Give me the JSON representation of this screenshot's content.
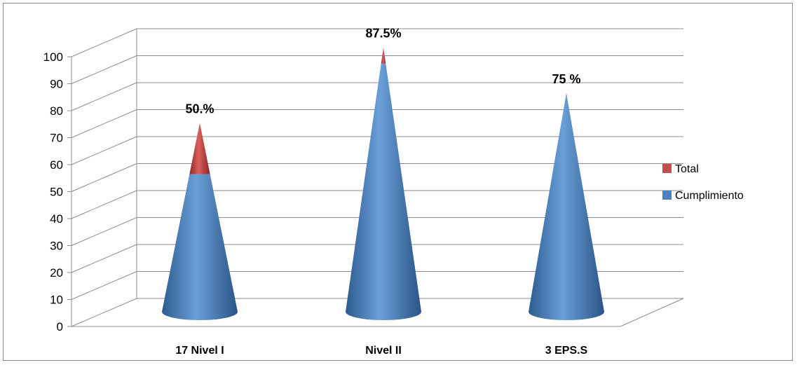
{
  "chart_data": {
    "type": "bar",
    "style": "3d-cone-stacked",
    "categories": [
      "17  Nivel  I",
      "Nivel II",
      "3  EPS.S"
    ],
    "series": [
      {
        "name": "Cumplimiento",
        "color": "#4F81BD",
        "values": [
          51,
          92,
          80
        ]
      },
      {
        "name": "Total",
        "color": "#C0504D",
        "values": [
          19,
          6,
          1
        ]
      }
    ],
    "data_labels": [
      "50.%",
      "87.5%",
      "75 %"
    ],
    "ylim": [
      0,
      100
    ],
    "y_ticks": [
      0,
      10,
      20,
      30,
      40,
      50,
      60,
      70,
      80,
      90,
      100
    ],
    "grid": true,
    "legend_position": "right",
    "title": "",
    "xlabel": "",
    "ylabel": ""
  }
}
